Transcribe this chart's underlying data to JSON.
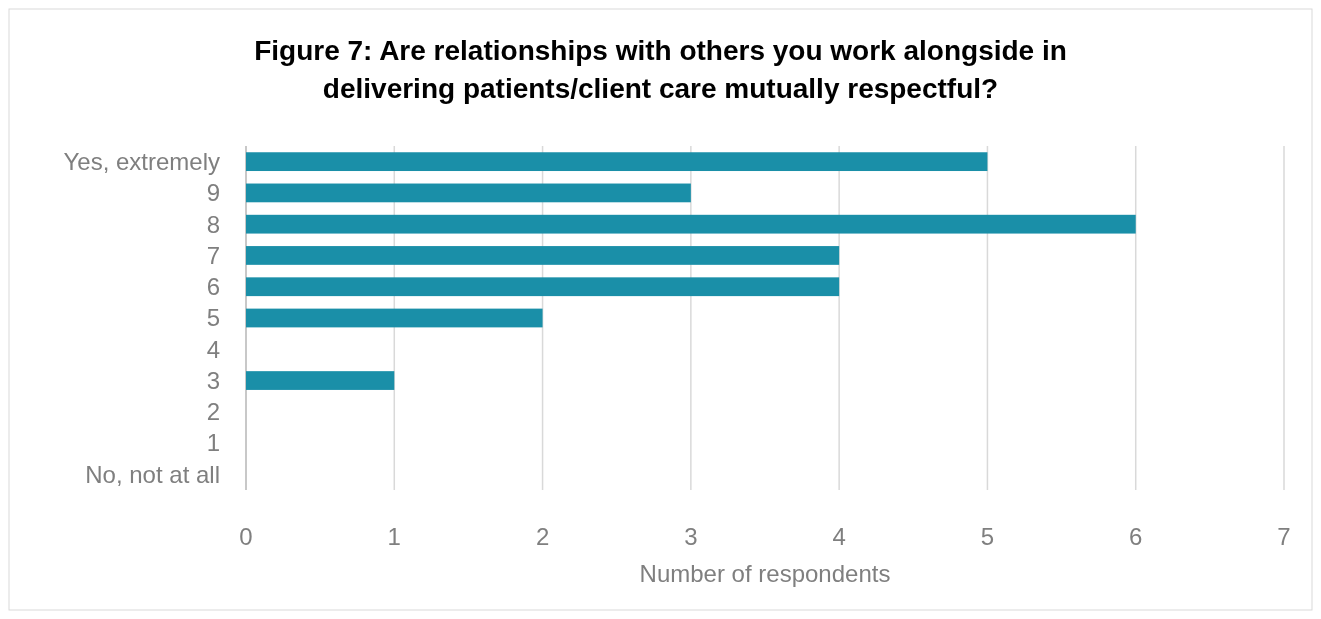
{
  "chart_data": {
    "type": "bar",
    "orientation": "horizontal",
    "title": "Figure 7: Are relationships with others you work alongside in delivering patients/client care mutually respectful?",
    "xlabel": "Number of respondents",
    "categories": [
      "Yes, extremely",
      "9",
      "8",
      "7",
      "6",
      "5",
      "4",
      "3",
      "2",
      "1",
      "No, not at all"
    ],
    "values": [
      5,
      3,
      6,
      4,
      4,
      2,
      0,
      1,
      0,
      0,
      0
    ],
    "color": "#1a8fa8",
    "xlim": [
      0,
      7
    ],
    "xticks": [
      0,
      1,
      2,
      3,
      4,
      5,
      6,
      7
    ],
    "grid": "x"
  }
}
